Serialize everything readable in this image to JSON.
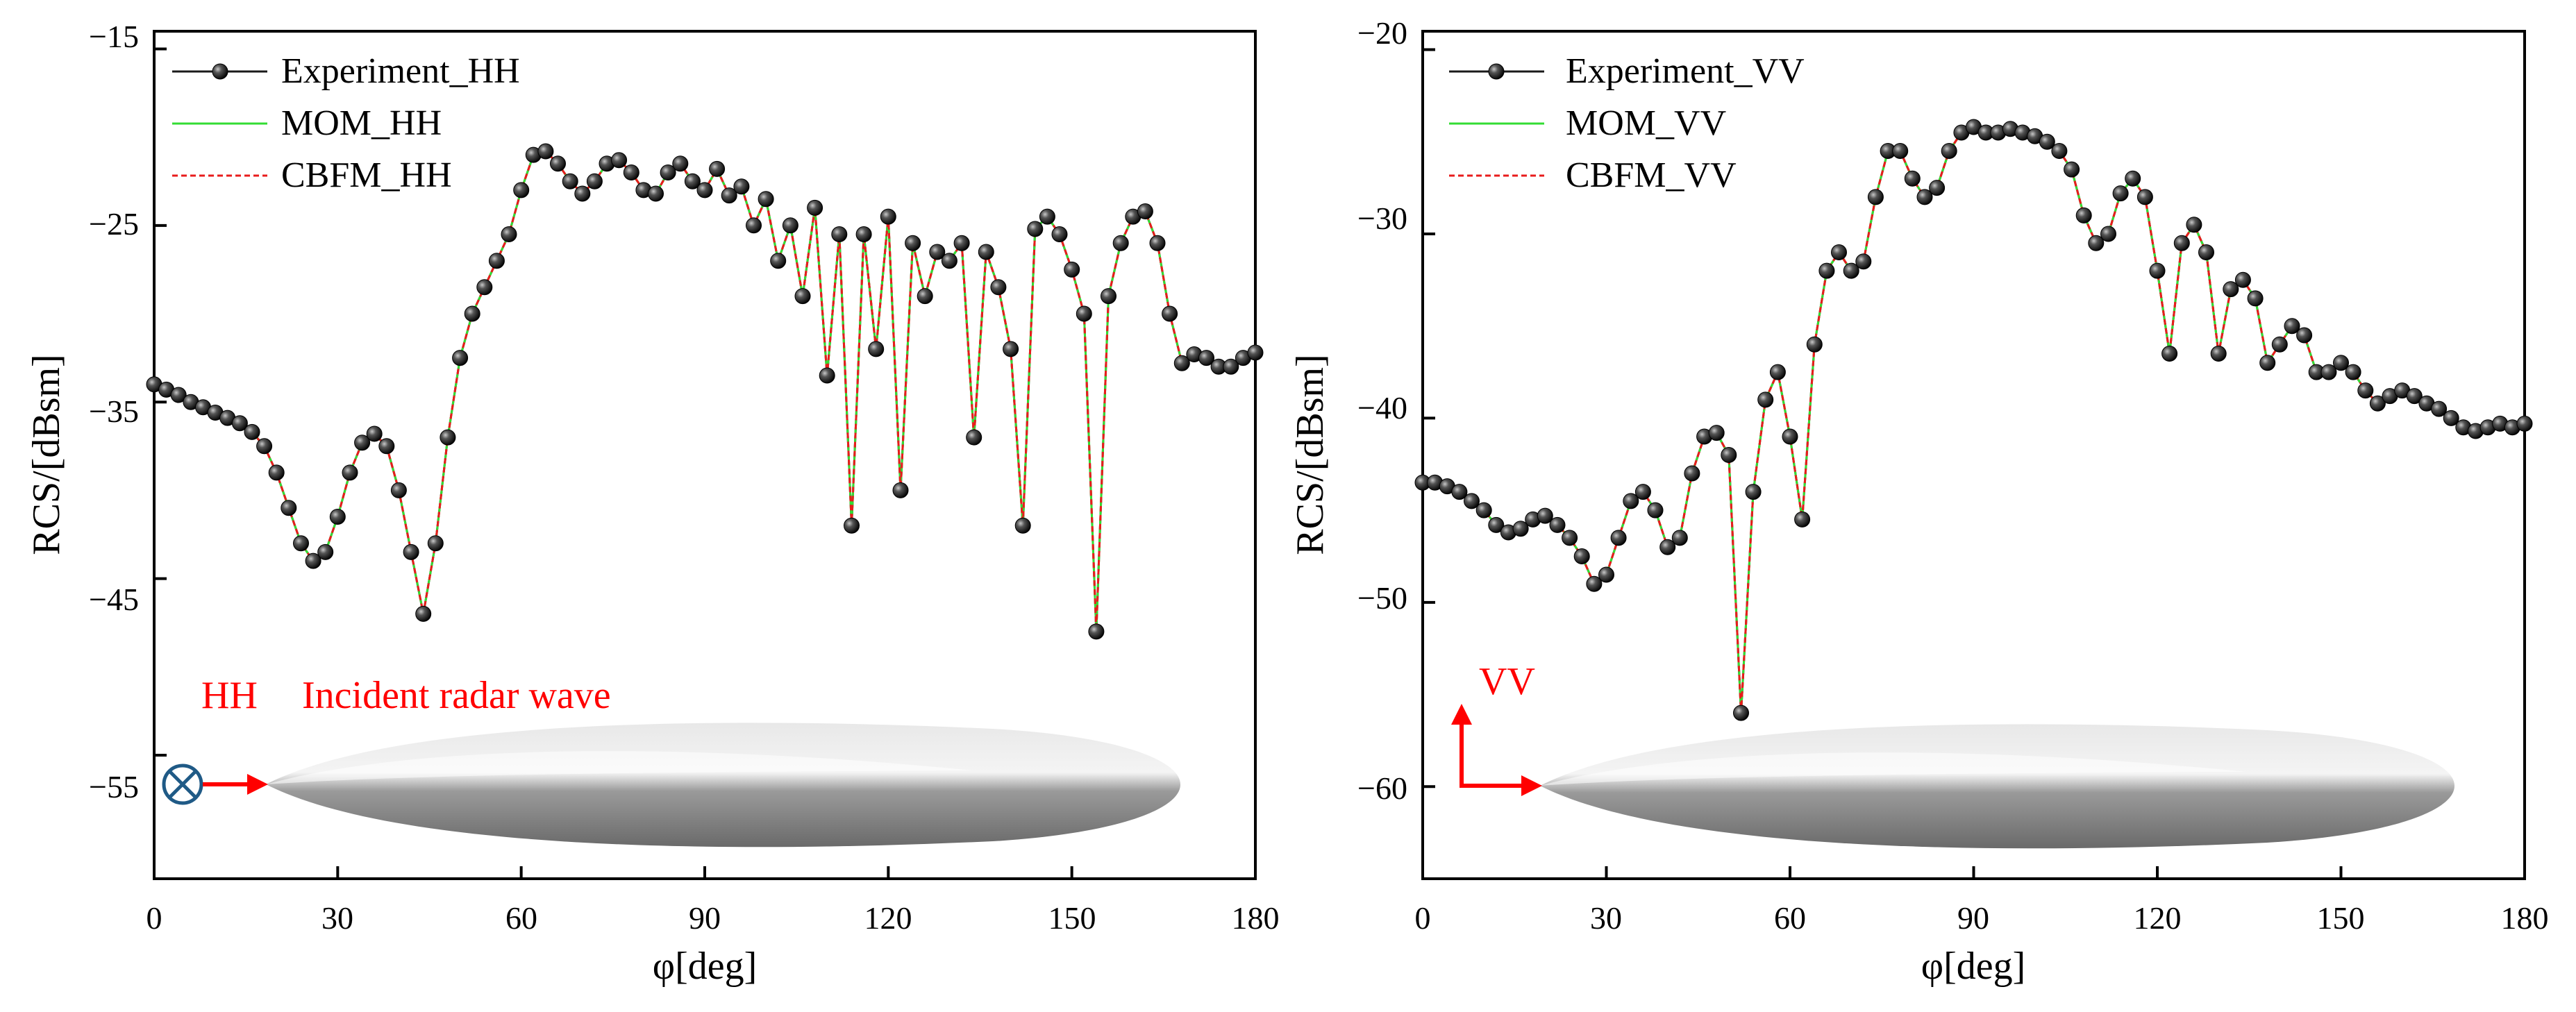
{
  "colors": {
    "experiment": "#1a1a1a",
    "mom": "#33dd33",
    "cbfm": "#e81c1c",
    "annotation": "#ff0000",
    "hh_symbol": "#1f5a86"
  },
  "chart_data": [
    {
      "type": "line",
      "title": "",
      "xlabel": "φ[deg]",
      "ylabel": "RCS/[dBsm]",
      "xlim": [
        0,
        180
      ],
      "ylim": [
        -62,
        -14
      ],
      "xticks": [
        0,
        30,
        60,
        90,
        120,
        150,
        180
      ],
      "yticks": [
        -55,
        -45,
        -35,
        -25,
        -15
      ],
      "xtick_labels": [
        "0",
        "30",
        "60",
        "90",
        "120",
        "150",
        "180"
      ],
      "ytick_labels": [
        "−55",
        "−45",
        "−35",
        "−25",
        "−15"
      ],
      "legend_position": "top-left",
      "legend": [
        "Experiment_HH",
        "MOM_HH",
        "CBFM_HH"
      ],
      "annotations": [
        "HH",
        "Incident radar wave"
      ],
      "series": [
        {
          "name": "Experiment_HH",
          "style": "line-markers"
        },
        {
          "name": "MOM_HH",
          "style": "solid"
        },
        {
          "name": "CBFM_HH",
          "style": "dashed"
        }
      ],
      "x": [
        0,
        2,
        4,
        6,
        8,
        10,
        12,
        14,
        16,
        18,
        20,
        22,
        24,
        26,
        28,
        30,
        32,
        34,
        36,
        38,
        40,
        42,
        44,
        46,
        48,
        50,
        52,
        54,
        56,
        58,
        60,
        62,
        64,
        66,
        68,
        70,
        72,
        74,
        76,
        78,
        80,
        82,
        84,
        86,
        88,
        90,
        92,
        94,
        96,
        98,
        100,
        102,
        104,
        106,
        108,
        110,
        112,
        114,
        116,
        118,
        120,
        122,
        124,
        126,
        128,
        130,
        132,
        134,
        136,
        138,
        140,
        142,
        144,
        146,
        148,
        150,
        152,
        154,
        156,
        158,
        160,
        162,
        164,
        166,
        168,
        170,
        172,
        174,
        176,
        178,
        180
      ],
      "y": [
        -34,
        -34.3,
        -34.6,
        -35,
        -35.3,
        -35.6,
        -35.9,
        -36.2,
        -36.7,
        -37.5,
        -39,
        -41,
        -43,
        -44,
        -43.5,
        -41.5,
        -39,
        -37.3,
        -36.8,
        -37.5,
        -40,
        -43.5,
        -47,
        -43,
        -37,
        -32.5,
        -30,
        -28.5,
        -27,
        -25.5,
        -23,
        -21,
        -20.8,
        -21.5,
        -22.5,
        -23.2,
        -22.5,
        -21.5,
        -21.3,
        -22,
        -23,
        -23.2,
        -22,
        -21.5,
        -22.5,
        -23,
        -21.8,
        -23.3,
        -22.8,
        -25,
        -23.5,
        -27,
        -25,
        -29,
        -24,
        -33.5,
        -25.5,
        -42,
        -25.5,
        -32,
        -24.5,
        -40,
        -26,
        -29,
        -26.5,
        -27,
        -26,
        -37,
        -26.5,
        -28.5,
        -32,
        -42,
        -25.2,
        -24.5,
        -25.5,
        -27.5,
        -30,
        -48,
        -29,
        -26,
        -24.5,
        -24.2,
        -26,
        -30,
        -32.8,
        -32.3,
        -32.5,
        -33,
        -33,
        -32.5,
        -32.2
      ]
    },
    {
      "type": "line",
      "title": "",
      "xlabel": "φ[deg]",
      "ylabel": "RCS/[dBsm]",
      "xlim": [
        0,
        180
      ],
      "ylim": [
        -65,
        -19
      ],
      "xticks": [
        0,
        30,
        60,
        90,
        120,
        150,
        180
      ],
      "yticks": [
        -60,
        -50,
        -40,
        -30,
        -20
      ],
      "xtick_labels": [
        "0",
        "30",
        "60",
        "90",
        "120",
        "150",
        "180"
      ],
      "ytick_labels": [
        "−60",
        "−50",
        "−40",
        "−30",
        "−20"
      ],
      "legend_position": "top-left",
      "legend": [
        "Experiment_VV",
        "MOM_VV",
        "CBFM_VV"
      ],
      "annotations": [
        "VV"
      ],
      "series": [
        {
          "name": "Experiment_VV",
          "style": "line-markers"
        },
        {
          "name": "MOM_VV",
          "style": "solid"
        },
        {
          "name": "CBFM_VV",
          "style": "dashed"
        }
      ],
      "x": [
        0,
        2,
        4,
        6,
        8,
        10,
        12,
        14,
        16,
        18,
        20,
        22,
        24,
        26,
        28,
        30,
        32,
        34,
        36,
        38,
        40,
        42,
        44,
        46,
        48,
        50,
        52,
        54,
        56,
        58,
        60,
        62,
        64,
        66,
        68,
        70,
        72,
        74,
        76,
        78,
        80,
        82,
        84,
        86,
        88,
        90,
        92,
        94,
        96,
        98,
        100,
        102,
        104,
        106,
        108,
        110,
        112,
        114,
        116,
        118,
        120,
        122,
        124,
        126,
        128,
        130,
        132,
        134,
        136,
        138,
        140,
        142,
        144,
        146,
        148,
        150,
        152,
        154,
        156,
        158,
        160,
        162,
        164,
        166,
        168,
        170,
        172,
        174,
        176,
        178,
        180
      ],
      "y": [
        -43.5,
        -43.5,
        -43.7,
        -44,
        -44.5,
        -45,
        -45.8,
        -46.2,
        -46,
        -45.5,
        -45.3,
        -45.8,
        -46.5,
        -47.5,
        -49,
        -48.5,
        -46.5,
        -44.5,
        -44,
        -45,
        -47,
        -46.5,
        -43,
        -41,
        -40.8,
        -42,
        -56,
        -44,
        -39,
        -37.5,
        -41,
        -45.5,
        -36,
        -32,
        -31,
        -32,
        -31.5,
        -28,
        -25.5,
        -25.5,
        -27,
        -28,
        -27.5,
        -25.5,
        -24.5,
        -24.2,
        -24.5,
        -24.5,
        -24.3,
        -24.5,
        -24.7,
        -25,
        -25.5,
        -26.5,
        -29,
        -30.5,
        -30,
        -27.8,
        -27,
        -28,
        -32,
        -36.5,
        -30.5,
        -29.5,
        -31,
        -36.5,
        -33,
        -32.5,
        -33.5,
        -37,
        -36,
        -35,
        -35.5,
        -37.5,
        -37.5,
        -37,
        -37.5,
        -38.5,
        -39.2,
        -38.8,
        -38.5,
        -38.8,
        -39.2,
        -39.5,
        -40,
        -40.5,
        -40.7,
        -40.5,
        -40.3,
        -40.5,
        -40.3
      ]
    }
  ]
}
